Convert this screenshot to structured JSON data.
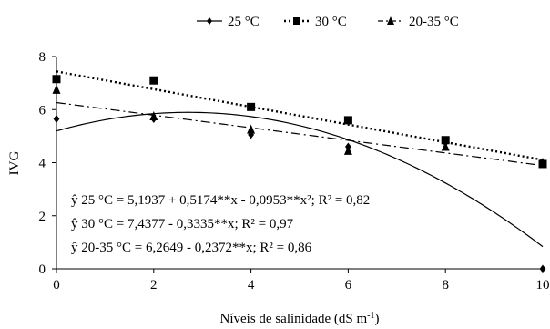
{
  "chart_data": {
    "type": "scatter",
    "xlabel": "Níveis de salinidade  (dS m",
    "xlabel_sup": "-1",
    "xlabel_suffix": ")",
    "ylabel": "IVG",
    "xlim": [
      0,
      10
    ],
    "ylim": [
      0,
      8
    ],
    "xticks": [
      0,
      2,
      4,
      6,
      8,
      10
    ],
    "yticks": [
      0,
      2,
      4,
      6,
      8
    ],
    "grid": false,
    "legend_position": "top",
    "series": [
      {
        "name": "25 °C",
        "marker": "diamond",
        "line_style": "solid",
        "color": "#000000",
        "x": [
          0,
          2,
          4,
          6,
          8,
          10
        ],
        "y": [
          5.65,
          5.65,
          5.05,
          4.6,
          4.75,
          0.0
        ],
        "fit": {
          "type": "quadratic",
          "a": 5.1937,
          "b": 0.5174,
          "c": -0.0953
        }
      },
      {
        "name": "30 °C",
        "marker": "square",
        "line_style": "dotted",
        "color": "#000000",
        "x": [
          0,
          2,
          4,
          6,
          8,
          10
        ],
        "y": [
          7.15,
          7.1,
          6.1,
          5.6,
          4.85,
          3.95
        ],
        "fit": {
          "type": "linear",
          "a": 7.4377,
          "b": -0.3335
        }
      },
      {
        "name": "20-35 °C",
        "marker": "triangle",
        "line_style": "dashdot",
        "color": "#000000",
        "x": [
          0,
          2,
          4,
          6,
          8,
          10
        ],
        "y": [
          6.75,
          5.75,
          5.25,
          4.45,
          4.6,
          4.0
        ],
        "fit": {
          "type": "linear",
          "a": 6.2649,
          "b": -0.2372
        }
      }
    ],
    "annotations": [
      "ŷ 25 °C = 5,1937  + 0,5174**x  - 0,0953**x²;  R² = 0,82",
      "ŷ 30 °C =  7,4377  - 0,3335**x;  R² = 0,97",
      "ŷ 20-35 °C = 6,2649  - 0,2372**x;  R² = 0,86"
    ]
  }
}
